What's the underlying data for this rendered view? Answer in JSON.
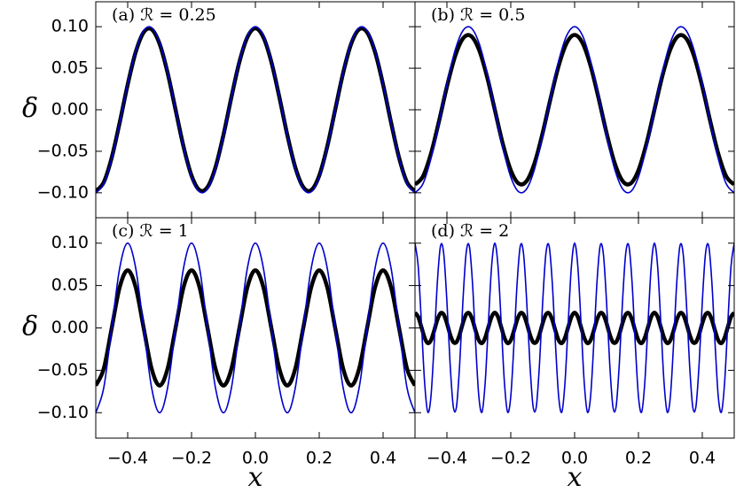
{
  "chart_data": [
    {
      "type": "line",
      "title": "(a) ℛ = 0.25",
      "ylabel": "δ",
      "x": [
        -0.5,
        -0.475,
        -0.45,
        -0.425,
        -0.4,
        -0.375,
        -0.35,
        -0.325,
        -0.3,
        -0.275,
        -0.25,
        -0.225,
        -0.2,
        -0.175,
        -0.15,
        -0.125,
        -0.1,
        -0.075,
        -0.05,
        -0.025,
        0,
        0.025,
        0.05,
        0.075,
        0.1,
        0.125,
        0.15,
        0.175,
        0.2,
        0.225,
        0.25,
        0.275,
        0.3,
        0.325,
        0.35,
        0.375,
        0.4,
        0.425,
        0.45,
        0.475,
        0.5
      ],
      "series": [
        {
          "color": "#000000",
          "values": [
            -0.098,
            -0.0873,
            -0.0576,
            -0.0153,
            0.0303,
            0.0693,
            0.0932,
            0.0968,
            0.0793,
            0.0445,
            0,
            -0.0445,
            -0.0793,
            -0.0968,
            -0.0932,
            -0.0693,
            -0.0303,
            0.0153,
            0.0576,
            0.0873,
            0.098,
            0.0873,
            0.0576,
            0.0153,
            -0.0303,
            -0.0693,
            -0.0932,
            -0.0968,
            -0.0793,
            -0.0445,
            0,
            0.0445,
            0.0793,
            0.0968,
            0.0932,
            0.0693,
            0.0303,
            -0.0153,
            -0.0576,
            -0.0873,
            -0.098
          ]
        },
        {
          "color": "#0000cc",
          "values": [
            -0.1,
            -0.0891,
            -0.0588,
            -0.0156,
            0.0309,
            0.0707,
            0.0951,
            0.0988,
            0.0809,
            0.0454,
            0,
            -0.0454,
            -0.0809,
            -0.0988,
            -0.0951,
            -0.0707,
            -0.0309,
            0.0156,
            0.0588,
            0.0891,
            0.1,
            0.0891,
            0.0588,
            0.0156,
            -0.0309,
            -0.0707,
            -0.0951,
            -0.0988,
            -0.0809,
            -0.0454,
            0,
            0.0454,
            0.0809,
            0.0988,
            0.0951,
            0.0707,
            0.0309,
            -0.0156,
            -0.0588,
            -0.0891,
            -0.1
          ]
        }
      ],
      "xlim": [
        -0.5,
        0.5
      ],
      "ylim": [
        -0.13,
        0.13
      ],
      "yticks": [
        {
          "value": -0.1,
          "label": "−0.10"
        },
        {
          "value": -0.05,
          "label": "−0.05"
        },
        {
          "value": 0,
          "label": "0.00"
        },
        {
          "value": 0.05,
          "label": "0.05"
        },
        {
          "value": 0.1,
          "label": "0.10"
        }
      ]
    },
    {
      "type": "line",
      "title": "(b) ℛ = 0.5",
      "x": [
        -0.5,
        -0.475,
        -0.45,
        -0.425,
        -0.4,
        -0.375,
        -0.35,
        -0.325,
        -0.3,
        -0.275,
        -0.25,
        -0.225,
        -0.2,
        -0.175,
        -0.15,
        -0.125,
        -0.1,
        -0.075,
        -0.05,
        -0.025,
        0,
        0.025,
        0.05,
        0.075,
        0.1,
        0.125,
        0.15,
        0.175,
        0.2,
        0.225,
        0.25,
        0.275,
        0.3,
        0.325,
        0.35,
        0.375,
        0.4,
        0.425,
        0.45,
        0.475,
        0.5
      ],
      "series": [
        {
          "color": "#000000",
          "values": [
            -0.09,
            -0.0802,
            -0.0529,
            -0.0141,
            0.0278,
            0.0636,
            0.0856,
            0.0889,
            0.0728,
            0.0409,
            0,
            -0.0409,
            -0.0728,
            -0.0889,
            -0.0856,
            -0.0636,
            -0.0278,
            0.0141,
            0.0529,
            0.0802,
            0.09,
            0.0802,
            0.0529,
            0.0141,
            -0.0278,
            -0.0636,
            -0.0856,
            -0.0889,
            -0.0728,
            -0.0409,
            0,
            0.0409,
            0.0728,
            0.0889,
            0.0856,
            0.0636,
            0.0278,
            -0.0141,
            -0.0529,
            -0.0802,
            -0.09
          ]
        },
        {
          "color": "#0000cc",
          "values": [
            -0.1,
            -0.0891,
            -0.0588,
            -0.0156,
            0.0309,
            0.0707,
            0.0951,
            0.0988,
            0.0809,
            0.0454,
            0,
            -0.0454,
            -0.0809,
            -0.0988,
            -0.0951,
            -0.0707,
            -0.0309,
            0.0156,
            0.0588,
            0.0891,
            0.1,
            0.0891,
            0.0588,
            0.0156,
            -0.0309,
            -0.0707,
            -0.0951,
            -0.0988,
            -0.0809,
            -0.0454,
            0,
            0.0454,
            0.0809,
            0.0988,
            0.0951,
            0.0707,
            0.0309,
            -0.0156,
            -0.0588,
            -0.0891,
            -0.1
          ]
        }
      ],
      "xlim": [
        -0.5,
        0.5
      ],
      "ylim": [
        -0.13,
        0.13
      ]
    },
    {
      "type": "line",
      "title": "(c) ℛ = 1",
      "ylabel": "δ",
      "xlabel": "x",
      "x": [
        -0.5,
        -0.475,
        -0.45,
        -0.425,
        -0.4,
        -0.375,
        -0.35,
        -0.325,
        -0.3,
        -0.275,
        -0.25,
        -0.225,
        -0.2,
        -0.175,
        -0.15,
        -0.125,
        -0.1,
        -0.075,
        -0.05,
        -0.025,
        0,
        0.025,
        0.05,
        0.075,
        0.1,
        0.125,
        0.15,
        0.175,
        0.2,
        0.225,
        0.25,
        0.275,
        0.3,
        0.325,
        0.35,
        0.375,
        0.4,
        0.425,
        0.45,
        0.475,
        0.5
      ],
      "series": [
        {
          "color": "#000000",
          "values": [
            -0.068,
            -0.0481,
            0,
            0.0481,
            0.068,
            0.0481,
            0,
            -0.0481,
            -0.068,
            -0.0481,
            0,
            0.0481,
            0.068,
            0.0481,
            0,
            -0.0481,
            -0.068,
            -0.0481,
            0,
            0.0481,
            0.068,
            0.0481,
            0,
            -0.0481,
            -0.068,
            -0.0481,
            0,
            0.0481,
            0.068,
            0.0481,
            0,
            -0.0481,
            -0.068,
            -0.0481,
            0,
            0.0481,
            0.068,
            0.0481,
            0,
            -0.0481,
            -0.068
          ]
        },
        {
          "color": "#0000cc",
          "values": [
            -0.1,
            -0.0707,
            0,
            0.0707,
            0.1,
            0.0707,
            0,
            -0.0707,
            -0.1,
            -0.0707,
            0,
            0.0707,
            0.1,
            0.0707,
            0,
            -0.0707,
            -0.1,
            -0.0707,
            0,
            0.0707,
            0.1,
            0.0707,
            0,
            -0.0707,
            -0.1,
            -0.0707,
            0,
            0.0707,
            0.1,
            0.0707,
            0,
            -0.0707,
            -0.1,
            -0.0707,
            0,
            0.0707,
            0.1,
            0.0707,
            0,
            -0.0707,
            -0.1
          ]
        }
      ],
      "xlim": [
        -0.5,
        0.5
      ],
      "ylim": [
        -0.13,
        0.13
      ],
      "yticks": [
        {
          "value": -0.1,
          "label": "−0.10"
        },
        {
          "value": -0.05,
          "label": "−0.05"
        },
        {
          "value": 0,
          "label": "0.00"
        },
        {
          "value": 0.05,
          "label": "0.05"
        },
        {
          "value": 0.1,
          "label": "0.10"
        }
      ],
      "xticks": [
        {
          "value": -0.4,
          "label": "−0.4"
        },
        {
          "value": -0.2,
          "label": "−0.2"
        },
        {
          "value": 0,
          "label": "0.0"
        },
        0.2,
        0.4
      ]
    },
    {
      "type": "line",
      "title": "(d) ℛ = 2",
      "xlabel": "x",
      "x": [
        -0.5,
        -0.49,
        -0.48,
        -0.47,
        -0.46,
        -0.45,
        -0.44,
        -0.43,
        -0.42,
        -0.41,
        -0.4,
        -0.39,
        -0.38,
        -0.37,
        -0.36,
        -0.35,
        -0.34,
        -0.33,
        -0.32,
        -0.31,
        -0.3,
        -0.29,
        -0.28,
        -0.27,
        -0.26,
        -0.25,
        -0.24,
        -0.23,
        -0.22,
        -0.21,
        -0.2,
        -0.19,
        -0.18,
        -0.17,
        -0.16,
        -0.15,
        -0.14,
        -0.13,
        -0.12,
        -0.11,
        -0.1,
        -0.09,
        -0.08,
        -0.07,
        -0.06,
        -0.05,
        -0.04,
        -0.03,
        -0.02,
        -0.01,
        0,
        0.01,
        0.02,
        0.03,
        0.04,
        0.05,
        0.06,
        0.07,
        0.08,
        0.09,
        0.1,
        0.11,
        0.12,
        0.13,
        0.14,
        0.15,
        0.16,
        0.17,
        0.18,
        0.19,
        0.2,
        0.21,
        0.22,
        0.23,
        0.24,
        0.25,
        0.26,
        0.27,
        0.28,
        0.29,
        0.3,
        0.31,
        0.32,
        0.33,
        0.34,
        0.35,
        0.36,
        0.37,
        0.38,
        0.39,
        0.4,
        0.41,
        0.42,
        0.43,
        0.44,
        0.45,
        0.46,
        0.47,
        0.48,
        0.49,
        0.5
      ],
      "series": [
        {
          "color": "#000000",
          "values": [
            0.018,
            0.0131,
            0.0011,
            -0.0115,
            -0.0179,
            -0.0146,
            -0.0034,
            0.0096,
            0.0174,
            0.0158,
            0.0056,
            -0.0077,
            -0.0167,
            -0.0167,
            -0.0077,
            0.0056,
            0.0158,
            0.0174,
            0.0096,
            -0.0034,
            -0.0146,
            -0.0179,
            -0.0115,
            0.0011,
            0.0131,
            0.018,
            0.0131,
            0.0011,
            -0.0115,
            -0.0179,
            -0.0146,
            -0.0034,
            0.0096,
            0.0174,
            0.0158,
            0.0056,
            -0.0077,
            -0.0167,
            -0.0167,
            -0.0077,
            0.0056,
            0.0158,
            0.0174,
            0.0096,
            -0.0034,
            -0.0146,
            -0.0179,
            -0.0115,
            0.0011,
            0.0131,
            0.018,
            0.0131,
            0.0011,
            -0.0115,
            -0.0179,
            -0.0146,
            -0.0034,
            0.0096,
            0.0174,
            0.0158,
            0.0056,
            -0.0077,
            -0.0167,
            -0.0167,
            -0.0077,
            0.0056,
            0.0158,
            0.0174,
            0.0096,
            -0.0034,
            -0.0146,
            -0.0179,
            -0.0115,
            0.0011,
            0.0131,
            0.018,
            0.0131,
            0.0011,
            -0.0115,
            -0.0179,
            -0.0146,
            -0.0034,
            0.0096,
            0.0174,
            0.0158,
            0.0056,
            -0.0077,
            -0.0167,
            -0.0167,
            -0.0077,
            0.0056,
            0.0158,
            0.0174,
            0.0096,
            -0.0034,
            -0.0146,
            -0.0179,
            -0.0115,
            0.0011,
            0.0131,
            0.018
          ]
        },
        {
          "color": "#0000cc",
          "values": [
            0.1,
            0.0729,
            0.0063,
            -0.0637,
            -0.0992,
            -0.0809,
            -0.0187,
            0.0536,
            0.0969,
            0.0876,
            0.0309,
            -0.0426,
            -0.093,
            -0.093,
            -0.0426,
            0.0309,
            0.0876,
            0.0969,
            0.0536,
            -0.0187,
            -0.0809,
            -0.0992,
            -0.0637,
            0.0063,
            0.0729,
            0.1,
            0.0729,
            0.0063,
            -0.0637,
            -0.0992,
            -0.0809,
            -0.0187,
            0.0536,
            0.0969,
            0.0876,
            0.0309,
            -0.0426,
            -0.093,
            -0.093,
            -0.0426,
            0.0309,
            0.0876,
            0.0969,
            0.0536,
            -0.0187,
            -0.0809,
            -0.0992,
            -0.0637,
            0.0063,
            0.0729,
            0.1,
            0.0729,
            0.0063,
            -0.0637,
            -0.0992,
            -0.0809,
            -0.0187,
            0.0536,
            0.0969,
            0.0876,
            0.0309,
            -0.0426,
            -0.093,
            -0.093,
            -0.0426,
            0.0309,
            0.0876,
            0.0969,
            0.0536,
            -0.0187,
            -0.0809,
            -0.0992,
            -0.0637,
            0.0063,
            0.0729,
            0.1,
            0.0729,
            0.0063,
            -0.0637,
            -0.0992,
            -0.0809,
            -0.0187,
            0.0536,
            0.0969,
            0.0876,
            0.0309,
            -0.0426,
            -0.093,
            -0.093,
            -0.0426,
            0.0309,
            0.0876,
            0.0969,
            0.0536,
            -0.0187,
            -0.0809,
            -0.0992,
            -0.0637,
            0.0063,
            0.0729,
            0.1
          ]
        }
      ],
      "xlim": [
        -0.5,
        0.5
      ],
      "ylim": [
        -0.13,
        0.13
      ],
      "xticks": [
        {
          "value": -0.4,
          "label": "−0.4"
        },
        {
          "value": -0.2,
          "label": "−0.2"
        },
        {
          "value": 0,
          "label": "0.0"
        },
        0.2,
        0.4
      ]
    }
  ]
}
